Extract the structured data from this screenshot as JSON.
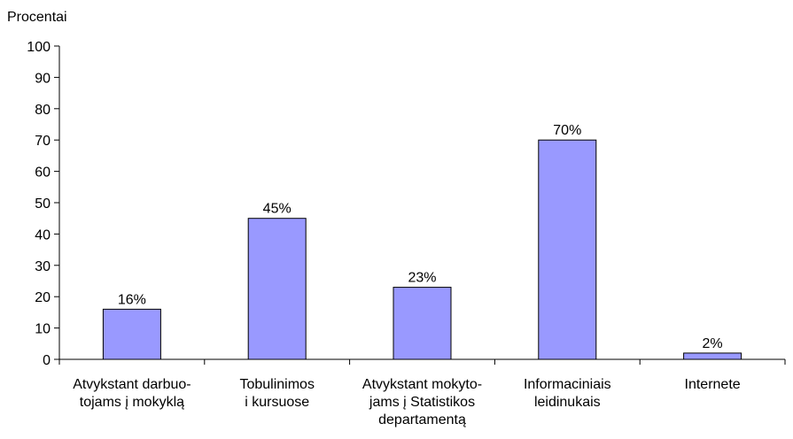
{
  "chart_data": {
    "type": "bar",
    "ylabel": "Procentai",
    "ylim": [
      0,
      100
    ],
    "ytick_step": 10,
    "grid": false,
    "legend": "none",
    "bar_color": "#9999ff",
    "categories": [
      [
        "Atvykstant darbuo-",
        "tojams į mokyklą"
      ],
      [
        "Tobulinimos",
        "i kursuose"
      ],
      [
        "Atvykstant mokyto-",
        "jams į Statistikos",
        "departamentą"
      ],
      [
        "Informaciniais",
        "leidinukais"
      ],
      [
        "Internete"
      ]
    ],
    "values": [
      16,
      45,
      23,
      70,
      2
    ],
    "data_labels": [
      "16%",
      "45%",
      "23%",
      "70%",
      "2%"
    ]
  }
}
